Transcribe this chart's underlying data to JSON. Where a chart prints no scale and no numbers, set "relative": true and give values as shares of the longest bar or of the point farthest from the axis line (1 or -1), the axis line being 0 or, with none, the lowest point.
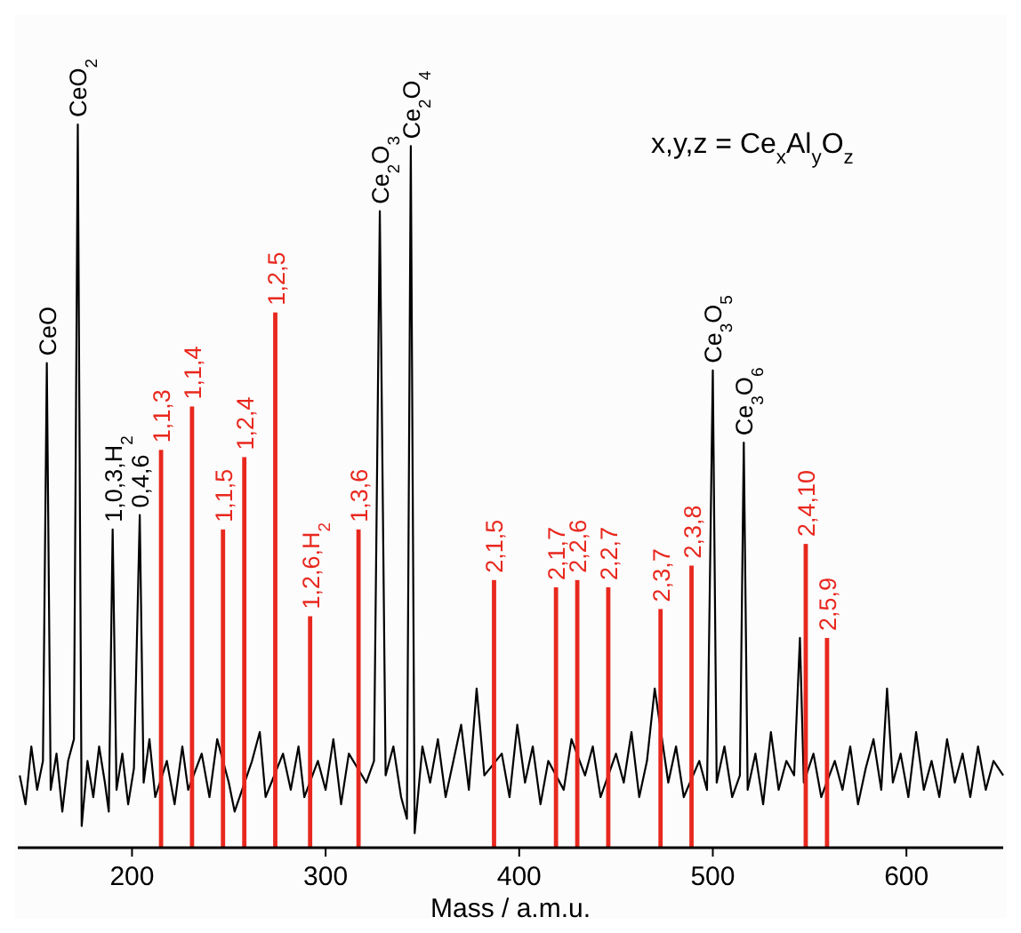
{
  "chart_data": {
    "type": "line",
    "relative": true,
    "xlabel": "Mass / a.m.u.",
    "xlim": [
      141,
      650
    ],
    "xticks": [
      200,
      300,
      400,
      500,
      600
    ],
    "series": [
      {
        "color": "#000000",
        "x": [
          142,
          145,
          148,
          151,
          154,
          156,
          158,
          161,
          164,
          167,
          170,
          172,
          174,
          177,
          180,
          183,
          186,
          188,
          190,
          192,
          195,
          198,
          201,
          204,
          206,
          209,
          212,
          218,
          222,
          226,
          229,
          236,
          240,
          244,
          250,
          253,
          262,
          266,
          269,
          278,
          282,
          286,
          289,
          296,
          300,
          304,
          308,
          312,
          321,
          325,
          328,
          331,
          335,
          339,
          342,
          344,
          346,
          350,
          354,
          358,
          362,
          366,
          370,
          374,
          378,
          382,
          391,
          395,
          399,
          403,
          407,
          411,
          415,
          423,
          427,
          434,
          438,
          442,
          450,
          454,
          458,
          462,
          466,
          470,
          477,
          481,
          485,
          493,
          497,
          500,
          502,
          506,
          510,
          514,
          516,
          518,
          522,
          526,
          530,
          534,
          538,
          542,
          545,
          547,
          552,
          556,
          563,
          567,
          571,
          575,
          579,
          583,
          587,
          590,
          593,
          597,
          601,
          605,
          609,
          613,
          617,
          621,
          625,
          629,
          633,
          637,
          641,
          645,
          650
        ],
        "values": [
          0.1,
          0.06,
          0.14,
          0.08,
          0.12,
          0.67,
          0.08,
          0.13,
          0.05,
          0.12,
          0.15,
          1.0,
          0.03,
          0.12,
          0.07,
          0.14,
          0.09,
          0.05,
          0.44,
          0.08,
          0.13,
          0.06,
          0.11,
          0.46,
          0.09,
          0.15,
          0.07,
          0.12,
          0.06,
          0.14,
          0.08,
          0.13,
          0.07,
          0.15,
          0.09,
          0.05,
          0.12,
          0.16,
          0.07,
          0.13,
          0.08,
          0.14,
          0.07,
          0.12,
          0.08,
          0.15,
          0.06,
          0.13,
          0.09,
          0.12,
          0.88,
          0.1,
          0.14,
          0.07,
          0.04,
          0.97,
          0.02,
          0.14,
          0.09,
          0.15,
          0.07,
          0.12,
          0.17,
          0.08,
          0.22,
          0.1,
          0.13,
          0.07,
          0.17,
          0.09,
          0.14,
          0.06,
          0.12,
          0.08,
          0.15,
          0.1,
          0.14,
          0.07,
          0.13,
          0.09,
          0.16,
          0.07,
          0.12,
          0.22,
          0.09,
          0.14,
          0.07,
          0.12,
          0.08,
          0.66,
          0.09,
          0.14,
          0.07,
          0.1,
          0.56,
          0.08,
          0.13,
          0.06,
          0.16,
          0.08,
          0.12,
          0.1,
          0.29,
          0.09,
          0.13,
          0.07,
          0.12,
          0.08,
          0.14,
          0.06,
          0.11,
          0.15,
          0.08,
          0.22,
          0.09,
          0.13,
          0.07,
          0.16,
          0.08,
          0.12,
          0.07,
          0.15,
          0.09,
          0.13,
          0.07,
          0.14,
          0.08,
          0.12,
          0.1
        ]
      },
      {
        "type": "bar",
        "color": "#e8281e",
        "x": [
          215,
          231,
          247,
          258,
          274,
          292,
          317,
          387,
          419,
          430,
          446,
          473,
          489,
          548,
          559
        ],
        "values": [
          0.55,
          0.61,
          0.44,
          0.54,
          0.74,
          0.32,
          0.44,
          0.37,
          0.36,
          0.37,
          0.36,
          0.33,
          0.39,
          0.42,
          0.29
        ]
      }
    ],
    "annotations": [
      {
        "text": "CeO",
        "x": 156,
        "y": 0.67
      },
      {
        "text": "CeO$_{2}$",
        "x": 172,
        "y": 1.0
      },
      {
        "text": "1,0,3,H$_{2}$",
        "x": 190,
        "y": 0.44
      },
      {
        "text": "0,4,6",
        "x": 204,
        "y": 0.46
      },
      {
        "text": "1,1,3",
        "x": 215,
        "y": 0.55
      },
      {
        "text": "1,1,4",
        "x": 231,
        "y": 0.61
      },
      {
        "text": "1,1,5",
        "x": 247,
        "y": 0.44
      },
      {
        "text": "1,2,4",
        "x": 258,
        "y": 0.54
      },
      {
        "text": "1,2,5",
        "x": 274,
        "y": 0.74
      },
      {
        "text": "1,2,6,H$_{2}$",
        "x": 292,
        "y": 0.32
      },
      {
        "text": "1,3,6",
        "x": 317,
        "y": 0.44
      },
      {
        "text": "Ce$_{2}$O$_{3}$",
        "x": 328,
        "y": 0.88
      },
      {
        "text": "Ce$_{2}$O$_{4}$",
        "x": 344,
        "y": 0.97
      },
      {
        "text": "2,1,5",
        "x": 387,
        "y": 0.37
      },
      {
        "text": "2,1,7",
        "x": 419,
        "y": 0.36
      },
      {
        "text": "2,2,6",
        "x": 430,
        "y": 0.37
      },
      {
        "text": "2,2,7",
        "x": 446,
        "y": 0.36
      },
      {
        "text": "2,3,7",
        "x": 473,
        "y": 0.33
      },
      {
        "text": "2,3,8",
        "x": 489,
        "y": 0.39
      },
      {
        "text": "Ce$_{3}$O$_{5}$",
        "x": 500,
        "y": 0.66
      },
      {
        "text": "Ce$_{3}$O$_{6}$",
        "x": 516,
        "y": 0.56
      },
      {
        "text": "2,4,10",
        "x": 548,
        "y": 0.42
      },
      {
        "text": "2,5,9",
        "x": 559,
        "y": 0.29
      },
      "x,y,z = Ce$_{x}$Al$_{y}$O$_{z}$"
    ]
  }
}
